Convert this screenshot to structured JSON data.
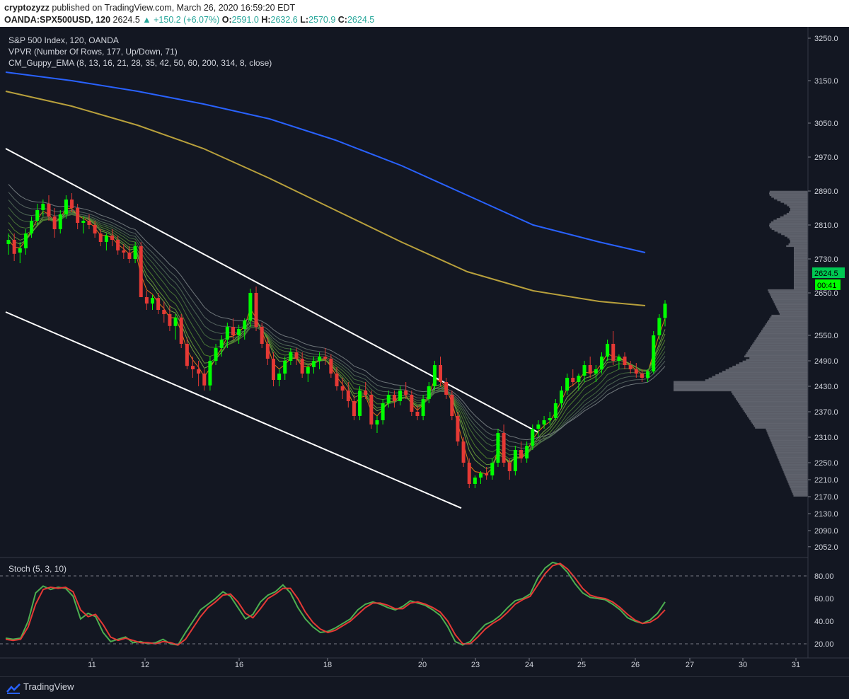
{
  "header": {
    "author": "cryptozyzz",
    "published_text": " published on TradingView.com, March 26, 2020 16:59:20 EDT",
    "symbol": "OANDA:SPX500USD, 120",
    "last": "2624.5",
    "change": "▲ +150.2 (+6.07%)",
    "o_label": "O:",
    "o_value": "2591.0",
    "h_label": "H:",
    "h_value": "2632.6",
    "l_label": "L:",
    "l_value": "2570.9",
    "c_label": "C:",
    "c_value": "2624.5"
  },
  "legend": {
    "line1": "S&P 500 Index, 120, OANDA",
    "line2": "VPVR (Number Of Rows, 177, Up/Down, 71)",
    "line3": "CM_Guppy_EMA (8, 13, 16, 21, 28, 35, 42, 50, 60, 200, 314, 8, close)"
  },
  "price_axis": {
    "ticks": [
      "3250.0",
      "3150.0",
      "3050.0",
      "2970.0",
      "2890.0",
      "2810.0",
      "2730.0",
      "2650.0",
      "2550.0",
      "2490.0",
      "2430.0",
      "2370.0",
      "2310.0",
      "2250.0",
      "2210.0",
      "2170.0",
      "2130.0",
      "2090.0",
      "2052.0"
    ],
    "last_price_label": "2624.5",
    "countdown_label": "00:41"
  },
  "time_axis": {
    "ticks": [
      "11",
      "12",
      "16",
      "18",
      "20",
      "23",
      "24",
      "25",
      "26",
      "27",
      "30",
      "31"
    ]
  },
  "stoch": {
    "title": "Stoch (5, 3, 10)",
    "ticks": [
      "80.00",
      "60.00",
      "40.00",
      "20.00"
    ]
  },
  "footer": {
    "brand": "TradingView"
  },
  "colors": {
    "background": "#131722",
    "bull": "#00ff00",
    "bear": "#e53935",
    "ema200": "#b8a03c",
    "ema314": "#2962ff",
    "stoch_k": "#4caf50",
    "stoch_d": "#e53935",
    "channel": "#ffffff"
  },
  "chart_data": [
    {
      "type": "candlestick",
      "title": "S&P 500 Index, 120, OANDA",
      "x_ticks": [
        "11",
        "12",
        "16",
        "18",
        "20",
        "23",
        "24",
        "25",
        "26",
        "27",
        "30",
        "31"
      ],
      "ylim": [
        2030,
        3270
      ],
      "last": 2624.5,
      "candles_approx": [
        [
          2765,
          2790,
          2740,
          2775
        ],
        [
          2775,
          2790,
          2725,
          2742
        ],
        [
          2745,
          2770,
          2720,
          2755
        ],
        [
          2755,
          2800,
          2740,
          2790
        ],
        [
          2790,
          2830,
          2780,
          2820
        ],
        [
          2820,
          2860,
          2810,
          2845
        ],
        [
          2845,
          2870,
          2830,
          2860
        ],
        [
          2860,
          2880,
          2820,
          2830
        ],
        [
          2830,
          2850,
          2780,
          2800
        ],
        [
          2800,
          2845,
          2790,
          2835
        ],
        [
          2835,
          2880,
          2825,
          2870
        ],
        [
          2870,
          2885,
          2840,
          2850
        ],
        [
          2850,
          2860,
          2800,
          2815
        ],
        [
          2815,
          2830,
          2790,
          2820
        ],
        [
          2820,
          2835,
          2800,
          2810
        ],
        [
          2810,
          2820,
          2780,
          2790
        ],
        [
          2790,
          2800,
          2760,
          2770
        ],
        [
          2770,
          2790,
          2750,
          2785
        ],
        [
          2785,
          2800,
          2760,
          2775
        ],
        [
          2775,
          2785,
          2740,
          2750
        ],
        [
          2750,
          2765,
          2730,
          2745
        ],
        [
          2745,
          2760,
          2720,
          2730
        ],
        [
          2730,
          2770,
          2720,
          2760
        ],
        [
          2760,
          2770,
          2700,
          2640
        ],
        [
          2640,
          2655,
          2610,
          2625
        ],
        [
          2625,
          2645,
          2610,
          2638
        ],
        [
          2638,
          2650,
          2600,
          2610
        ],
        [
          2610,
          2630,
          2580,
          2600
        ],
        [
          2600,
          2620,
          2560,
          2572
        ],
        [
          2572,
          2600,
          2540,
          2592
        ],
        [
          2592,
          2600,
          2520,
          2530
        ],
        [
          2530,
          2545,
          2470,
          2478
        ],
        [
          2478,
          2500,
          2450,
          2470
        ],
        [
          2470,
          2490,
          2430,
          2460
        ],
        [
          2460,
          2470,
          2420,
          2432
        ],
        [
          2432,
          2500,
          2420,
          2490
        ],
        [
          2490,
          2530,
          2480,
          2520
        ],
        [
          2520,
          2550,
          2500,
          2540
        ],
        [
          2540,
          2580,
          2520,
          2570
        ],
        [
          2570,
          2590,
          2540,
          2550
        ],
        [
          2550,
          2575,
          2530,
          2565
        ],
        [
          2565,
          2590,
          2540,
          2585
        ],
        [
          2585,
          2660,
          2570,
          2650
        ],
        [
          2650,
          2665,
          2560,
          2570
        ],
        [
          2570,
          2580,
          2520,
          2530
        ],
        [
          2530,
          2545,
          2480,
          2495
        ],
        [
          2495,
          2510,
          2430,
          2445
        ],
        [
          2445,
          2470,
          2430,
          2460
        ],
        [
          2460,
          2500,
          2445,
          2490
        ],
        [
          2490,
          2520,
          2480,
          2510
        ],
        [
          2510,
          2520,
          2480,
          2495
        ],
        [
          2495,
          2510,
          2450,
          2460
        ],
        [
          2460,
          2480,
          2440,
          2475
        ],
        [
          2475,
          2500,
          2460,
          2490
        ],
        [
          2490,
          2510,
          2470,
          2500
        ],
        [
          2500,
          2520,
          2480,
          2495
        ],
        [
          2495,
          2505,
          2450,
          2460
        ],
        [
          2460,
          2475,
          2420,
          2430
        ],
        [
          2430,
          2450,
          2400,
          2420
        ],
        [
          2420,
          2440,
          2380,
          2395
        ],
        [
          2395,
          2410,
          2350,
          2360
        ],
        [
          2360,
          2430,
          2350,
          2420
        ],
        [
          2420,
          2440,
          2400,
          2410
        ],
        [
          2410,
          2420,
          2330,
          2340
        ],
        [
          2340,
          2360,
          2320,
          2350
        ],
        [
          2350,
          2400,
          2340,
          2390
        ],
        [
          2390,
          2420,
          2380,
          2410
        ],
        [
          2410,
          2420,
          2380,
          2395
        ],
        [
          2395,
          2430,
          2385,
          2420
        ],
        [
          2420,
          2440,
          2400,
          2410
        ],
        [
          2410,
          2420,
          2360,
          2370
        ],
        [
          2370,
          2385,
          2350,
          2360
        ],
        [
          2360,
          2410,
          2350,
          2400
        ],
        [
          2400,
          2440,
          2390,
          2430
        ],
        [
          2430,
          2490,
          2420,
          2480
        ],
        [
          2480,
          2500,
          2430,
          2440
        ],
        [
          2440,
          2450,
          2400,
          2410
        ],
        [
          2410,
          2420,
          2350,
          2360
        ],
        [
          2360,
          2370,
          2290,
          2300
        ],
        [
          2300,
          2310,
          2240,
          2250
        ],
        [
          2250,
          2260,
          2190,
          2200
        ],
        [
          2200,
          2220,
          2190,
          2215
        ],
        [
          2215,
          2230,
          2200,
          2225
        ],
        [
          2225,
          2240,
          2210,
          2220
        ],
        [
          2220,
          2260,
          2210,
          2250
        ],
        [
          2250,
          2330,
          2240,
          2320
        ],
        [
          2320,
          2340,
          2240,
          2250
        ],
        [
          2250,
          2260,
          2210,
          2230
        ],
        [
          2230,
          2290,
          2220,
          2280
        ],
        [
          2280,
          2300,
          2250,
          2260
        ],
        [
          2260,
          2300,
          2250,
          2290
        ],
        [
          2290,
          2340,
          2280,
          2330
        ],
        [
          2330,
          2350,
          2310,
          2340
        ],
        [
          2340,
          2360,
          2330,
          2350
        ],
        [
          2350,
          2370,
          2340,
          2355
        ],
        [
          2355,
          2400,
          2350,
          2390
        ],
        [
          2390,
          2430,
          2380,
          2420
        ],
        [
          2420,
          2460,
          2410,
          2450
        ],
        [
          2450,
          2470,
          2430,
          2440
        ],
        [
          2440,
          2460,
          2420,
          2455
        ],
        [
          2455,
          2490,
          2440,
          2480
        ],
        [
          2480,
          2500,
          2450,
          2460
        ],
        [
          2460,
          2480,
          2440,
          2470
        ],
        [
          2470,
          2510,
          2460,
          2500
        ],
        [
          2500,
          2540,
          2490,
          2530
        ],
        [
          2530,
          2560,
          2480,
          2490
        ],
        [
          2490,
          2505,
          2470,
          2500
        ],
        [
          2500,
          2510,
          2470,
          2480
        ],
        [
          2480,
          2490,
          2460,
          2470
        ],
        [
          2470,
          2485,
          2450,
          2460
        ],
        [
          2460,
          2470,
          2440,
          2450
        ],
        [
          2450,
          2470,
          2440,
          2465
        ],
        [
          2465,
          2560,
          2460,
          2550
        ],
        [
          2550,
          2600,
          2540,
          2591
        ],
        [
          2591,
          2633,
          2571,
          2624.5
        ]
      ],
      "ema200_approx": [
        [
          0,
          3125
        ],
        [
          0.1,
          3090
        ],
        [
          0.2,
          3045
        ],
        [
          0.3,
          2990
        ],
        [
          0.4,
          2920
        ],
        [
          0.5,
          2845
        ],
        [
          0.6,
          2770
        ],
        [
          0.7,
          2700
        ],
        [
          0.8,
          2655
        ],
        [
          0.9,
          2630
        ],
        [
          0.97,
          2620
        ]
      ],
      "ema314_approx": [
        [
          0,
          3170
        ],
        [
          0.1,
          3150
        ],
        [
          0.2,
          3125
        ],
        [
          0.3,
          3095
        ],
        [
          0.4,
          3060
        ],
        [
          0.5,
          3010
        ],
        [
          0.6,
          2950
        ],
        [
          0.7,
          2880
        ],
        [
          0.8,
          2810
        ],
        [
          0.9,
          2770
        ],
        [
          0.97,
          2745
        ]
      ]
    },
    {
      "type": "line",
      "title": "Stoch (5, 3, 10)",
      "ylim": [
        10,
        95
      ],
      "series": [
        {
          "values": [
            25,
            24,
            25,
            40,
            65,
            71,
            68,
            70,
            69,
            62,
            42,
            47,
            44,
            30,
            22,
            24,
            26,
            21,
            22,
            20,
            21,
            24,
            20,
            19,
            30,
            40,
            50,
            55,
            60,
            66,
            62,
            52,
            42,
            46,
            57,
            63,
            66,
            72,
            65,
            52,
            42,
            35,
            30,
            31,
            34,
            38,
            42,
            50,
            55,
            57,
            55,
            52,
            50,
            53,
            58,
            56,
            54,
            50,
            45,
            35,
            22,
            19,
            22,
            30,
            37,
            40,
            45,
            52,
            58,
            60,
            64,
            78,
            87,
            92,
            90,
            83,
            73,
            65,
            61,
            60,
            59,
            55,
            50,
            43,
            40,
            38,
            41,
            47,
            57
          ]
        },
        {
          "values": [
            24,
            23,
            24,
            35,
            55,
            68,
            70,
            69,
            70,
            66,
            50,
            44,
            46,
            37,
            26,
            23,
            25,
            23,
            21,
            21,
            20,
            22,
            21,
            19,
            24,
            34,
            44,
            52,
            57,
            63,
            64,
            57,
            47,
            43,
            51,
            60,
            64,
            69,
            69,
            60,
            48,
            39,
            33,
            30,
            32,
            36,
            40,
            46,
            52,
            56,
            56,
            54,
            51,
            51,
            56,
            57,
            55,
            52,
            48,
            40,
            28,
            20,
            20,
            26,
            33,
            38,
            42,
            48,
            55,
            59,
            62,
            72,
            82,
            89,
            91,
            86,
            78,
            69,
            63,
            61,
            60,
            57,
            52,
            46,
            41,
            38,
            39,
            43,
            50
          ]
        }
      ]
    }
  ]
}
